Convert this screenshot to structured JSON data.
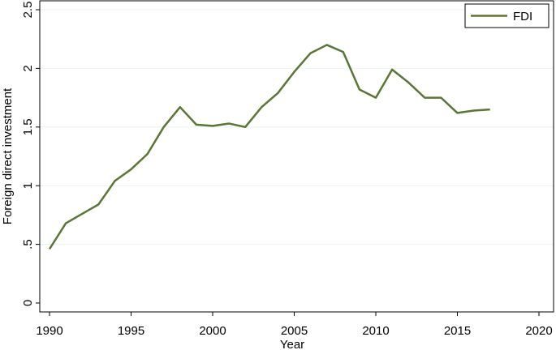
{
  "chart_data": {
    "type": "line",
    "xlabel": "Year",
    "ylabel": "Foreign direct investment",
    "xlim": [
      1990,
      2020
    ],
    "ylim": [
      0,
      2.5
    ],
    "x_ticks": [
      1990,
      1995,
      2000,
      2005,
      2010,
      2015,
      2020
    ],
    "y_ticks": [
      0,
      0.5,
      1,
      1.5,
      2,
      2.5
    ],
    "y_tick_labels": [
      "0",
      ".5",
      "1",
      "1.5",
      "2",
      "2.5"
    ],
    "grid": "horizontal",
    "legend_position": "top-right",
    "series": [
      {
        "name": "FDI",
        "color": "#5a7535",
        "x": [
          1990,
          1991,
          1992,
          1993,
          1994,
          1995,
          1996,
          1997,
          1998,
          1999,
          2000,
          2001,
          2002,
          2003,
          2004,
          2005,
          2006,
          2007,
          2008,
          2009,
          2010,
          2011,
          2012,
          2013,
          2014,
          2015,
          2016,
          2017
        ],
        "values": [
          0.46,
          0.68,
          0.76,
          0.84,
          1.04,
          1.14,
          1.27,
          1.5,
          1.67,
          1.52,
          1.51,
          1.53,
          1.5,
          1.67,
          1.79,
          1.97,
          2.13,
          2.2,
          2.14,
          1.82,
          1.75,
          1.99,
          1.88,
          1.75,
          1.75,
          1.62,
          1.64,
          1.65
        ]
      }
    ]
  }
}
